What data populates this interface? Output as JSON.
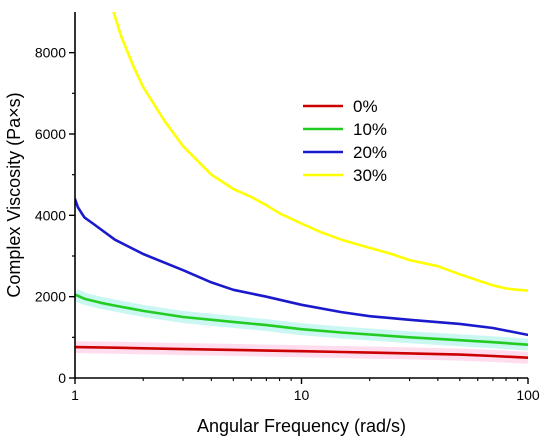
{
  "chart_data": {
    "type": "line",
    "title": "",
    "xlabel": "Angular Frequency (rad/s)",
    "ylabel": "Complex Viscosity (Pa×s)",
    "xscale": "log",
    "xlim": [
      1,
      100
    ],
    "ylim": [
      0,
      9000
    ],
    "xticks": [
      1,
      10,
      100
    ],
    "xtick_labels": [
      "1",
      "10",
      "100"
    ],
    "yticks": [
      0,
      2000,
      4000,
      6000,
      8000
    ],
    "ytick_labels": [
      "0",
      "2000",
      "4000",
      "6000",
      "8000"
    ],
    "grid": false,
    "legend_position": "upper-center",
    "series": [
      {
        "name": "0%",
        "color": "#cc0000",
        "band_color": "#ffc0e0",
        "x": [
          1,
          1.5,
          2,
          3,
          5,
          7,
          10,
          15,
          20,
          30,
          50,
          70,
          100
        ],
        "y": [
          760,
          745,
          730,
          710,
          690,
          675,
          660,
          640,
          625,
          605,
          575,
          540,
          500
        ]
      },
      {
        "name": "10%",
        "color": "#22cc22",
        "band_color": "#a0f0e8",
        "x": [
          1,
          1.1,
          1.3,
          1.5,
          2,
          3,
          5,
          7,
          10,
          15,
          20,
          30,
          50,
          70,
          100
        ],
        "y": [
          2050,
          1950,
          1850,
          1780,
          1650,
          1500,
          1380,
          1300,
          1200,
          1120,
          1070,
          1000,
          930,
          880,
          820
        ]
      },
      {
        "name": "20%",
        "color": "#1a1acc",
        "x": [
          1,
          1.03,
          1.07,
          1.1,
          1.2,
          1.5,
          2,
          3,
          4,
          5,
          7,
          10,
          15,
          20,
          30,
          50,
          70,
          100
        ],
        "y": [
          4400,
          4200,
          4050,
          3950,
          3800,
          3400,
          3050,
          2650,
          2350,
          2170,
          2000,
          1800,
          1620,
          1520,
          1430,
          1330,
          1230,
          1060
        ]
      },
      {
        "name": "30%",
        "color": "#ffff00",
        "x": [
          1.48,
          1.6,
          1.8,
          2,
          2.5,
          3,
          4,
          5,
          6,
          7,
          8,
          10,
          12,
          15,
          20,
          25,
          30,
          40,
          50,
          60,
          70,
          80,
          90,
          100
        ],
        "y": [
          9000,
          8400,
          7700,
          7150,
          6300,
          5700,
          5000,
          4650,
          4450,
          4250,
          4050,
          3800,
          3600,
          3400,
          3200,
          3050,
          2900,
          2750,
          2550,
          2400,
          2280,
          2200,
          2170,
          2150
        ]
      }
    ]
  }
}
